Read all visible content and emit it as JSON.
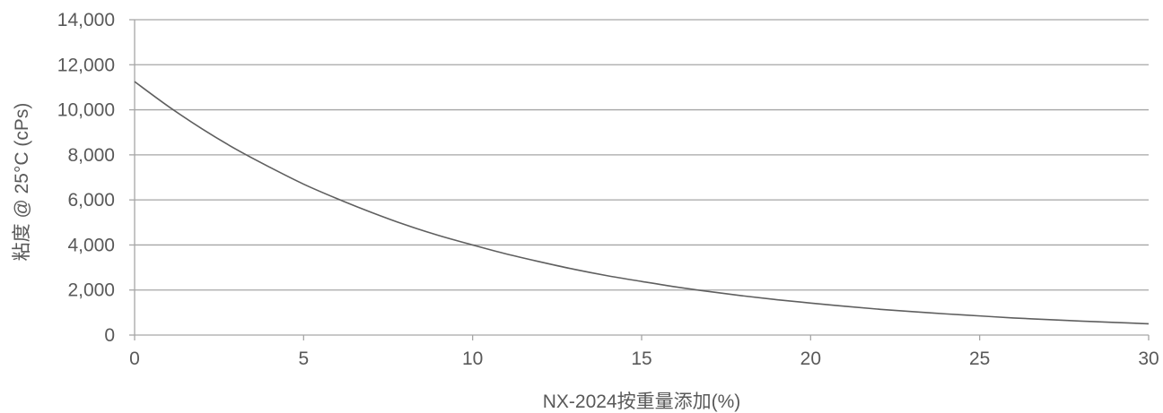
{
  "chart_data": {
    "type": "line",
    "xlabel": "NX-2024按重量添加(%)",
    "ylabel": "粘度 @ 25°C (cPs)",
    "xlim": [
      0,
      30
    ],
    "ylim": [
      0,
      14000
    ],
    "x_ticks": [
      0,
      5,
      10,
      15,
      20,
      25,
      30
    ],
    "x_tick_labels": [
      "0",
      "5",
      "10",
      "15",
      "20",
      "25",
      "30"
    ],
    "y_ticks": [
      0,
      2000,
      4000,
      6000,
      8000,
      10000,
      12000,
      14000
    ],
    "y_tick_labels": [
      "0",
      "2,000",
      "4,000",
      "6,000",
      "8,000",
      "10,000",
      "12,000",
      "14,000"
    ],
    "grid": {
      "horizontal": true,
      "vertical": false
    },
    "colors": {
      "series": "#5f5f5f",
      "grid": "#a6a6a6",
      "text": "#595959"
    },
    "series": [
      {
        "x": [
          0,
          1,
          2,
          3,
          4,
          5,
          6,
          7,
          8,
          9,
          10,
          11,
          12,
          13,
          14,
          15,
          16,
          17,
          18,
          19,
          20,
          21,
          22,
          23,
          24,
          25,
          26,
          27,
          28,
          29,
          30
        ],
        "y": [
          11250,
          10150,
          9150,
          8250,
          7450,
          6700,
          6050,
          5450,
          4900,
          4420,
          4000,
          3600,
          3250,
          2920,
          2630,
          2380,
          2140,
          1930,
          1740,
          1570,
          1420,
          1280,
          1150,
          1040,
          940,
          850,
          760,
          690,
          620,
          560,
          500
        ]
      }
    ]
  }
}
